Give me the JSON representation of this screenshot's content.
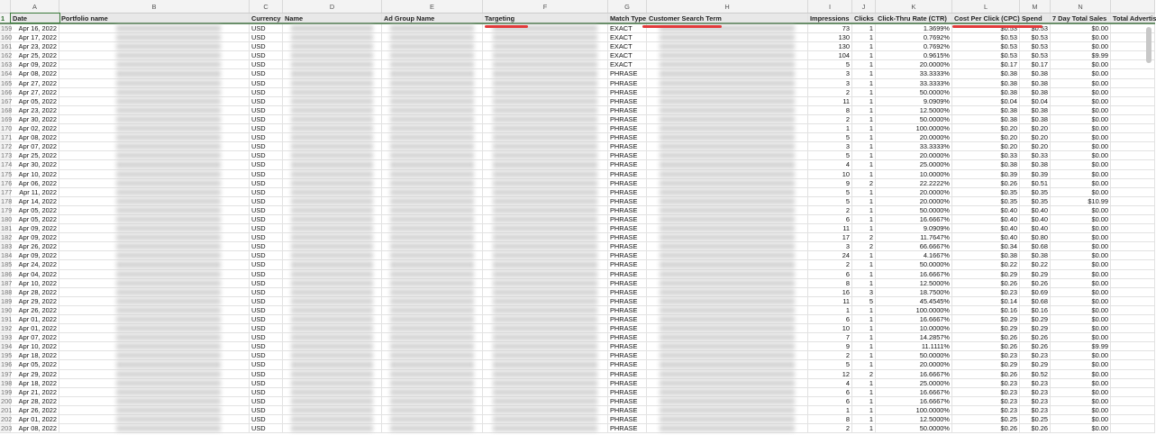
{
  "columns": [
    "A",
    "B",
    "C",
    "D",
    "E",
    "F",
    "G",
    "H",
    "I",
    "J",
    "K",
    "L",
    "M",
    "N",
    ""
  ],
  "headers": [
    "Date",
    "Portfolio name",
    "Currency",
    "Name",
    "Ad Group Name",
    "Targeting",
    "Match Type",
    "Customer Search Term",
    "Impressions",
    "Clicks",
    "Click-Thru Rate (CTR)",
    "Cost Per Click (CPC)",
    "Spend",
    "7 Day Total Sales",
    "Total Advertis"
  ],
  "header_row_number": "1",
  "currency": "USD",
  "rows": [
    [
      "159",
      "Apr 16, 2022",
      "EXACT",
      "73",
      "1",
      "1.3699%",
      "$0.53",
      "$0.53",
      "$0.00"
    ],
    [
      "160",
      "Apr 17, 2022",
      "EXACT",
      "130",
      "1",
      "0.7692%",
      "$0.53",
      "$0.53",
      "$0.00"
    ],
    [
      "161",
      "Apr 23, 2022",
      "EXACT",
      "130",
      "1",
      "0.7692%",
      "$0.53",
      "$0.53",
      "$0.00"
    ],
    [
      "162",
      "Apr 25, 2022",
      "EXACT",
      "104",
      "1",
      "0.9615%",
      "$0.53",
      "$0.53",
      "$9.99"
    ],
    [
      "163",
      "Apr 09, 2022",
      "EXACT",
      "5",
      "1",
      "20.0000%",
      "$0.17",
      "$0.17",
      "$0.00"
    ],
    [
      "164",
      "Apr 08, 2022",
      "PHRASE",
      "3",
      "1",
      "33.3333%",
      "$0.38",
      "$0.38",
      "$0.00"
    ],
    [
      "165",
      "Apr 27, 2022",
      "PHRASE",
      "3",
      "1",
      "33.3333%",
      "$0.38",
      "$0.38",
      "$0.00"
    ],
    [
      "166",
      "Apr 27, 2022",
      "PHRASE",
      "2",
      "1",
      "50.0000%",
      "$0.38",
      "$0.38",
      "$0.00"
    ],
    [
      "167",
      "Apr 05, 2022",
      "PHRASE",
      "11",
      "1",
      "9.0909%",
      "$0.04",
      "$0.04",
      "$0.00"
    ],
    [
      "168",
      "Apr 23, 2022",
      "PHRASE",
      "8",
      "1",
      "12.5000%",
      "$0.38",
      "$0.38",
      "$0.00"
    ],
    [
      "169",
      "Apr 30, 2022",
      "PHRASE",
      "2",
      "1",
      "50.0000%",
      "$0.38",
      "$0.38",
      "$0.00"
    ],
    [
      "170",
      "Apr 02, 2022",
      "PHRASE",
      "1",
      "1",
      "100.0000%",
      "$0.20",
      "$0.20",
      "$0.00"
    ],
    [
      "171",
      "Apr 08, 2022",
      "PHRASE",
      "5",
      "1",
      "20.0000%",
      "$0.20",
      "$0.20",
      "$0.00"
    ],
    [
      "172",
      "Apr 07, 2022",
      "PHRASE",
      "3",
      "1",
      "33.3333%",
      "$0.20",
      "$0.20",
      "$0.00"
    ],
    [
      "173",
      "Apr 25, 2022",
      "PHRASE",
      "5",
      "1",
      "20.0000%",
      "$0.33",
      "$0.33",
      "$0.00"
    ],
    [
      "174",
      "Apr 30, 2022",
      "PHRASE",
      "4",
      "1",
      "25.0000%",
      "$0.38",
      "$0.38",
      "$0.00"
    ],
    [
      "175",
      "Apr 10, 2022",
      "PHRASE",
      "10",
      "1",
      "10.0000%",
      "$0.39",
      "$0.39",
      "$0.00"
    ],
    [
      "176",
      "Apr 06, 2022",
      "PHRASE",
      "9",
      "2",
      "22.2222%",
      "$0.26",
      "$0.51",
      "$0.00"
    ],
    [
      "177",
      "Apr 11, 2022",
      "PHRASE",
      "5",
      "1",
      "20.0000%",
      "$0.35",
      "$0.35",
      "$0.00"
    ],
    [
      "178",
      "Apr 14, 2022",
      "PHRASE",
      "5",
      "1",
      "20.0000%",
      "$0.35",
      "$0.35",
      "$10.99"
    ],
    [
      "179",
      "Apr 05, 2022",
      "PHRASE",
      "2",
      "1",
      "50.0000%",
      "$0.40",
      "$0.40",
      "$0.00"
    ],
    [
      "180",
      "Apr 05, 2022",
      "PHRASE",
      "6",
      "1",
      "16.6667%",
      "$0.40",
      "$0.40",
      "$0.00"
    ],
    [
      "181",
      "Apr 09, 2022",
      "PHRASE",
      "11",
      "1",
      "9.0909%",
      "$0.40",
      "$0.40",
      "$0.00"
    ],
    [
      "182",
      "Apr 09, 2022",
      "PHRASE",
      "17",
      "2",
      "11.7647%",
      "$0.40",
      "$0.80",
      "$0.00"
    ],
    [
      "183",
      "Apr 26, 2022",
      "PHRASE",
      "3",
      "2",
      "66.6667%",
      "$0.34",
      "$0.68",
      "$0.00"
    ],
    [
      "184",
      "Apr 09, 2022",
      "PHRASE",
      "24",
      "1",
      "4.1667%",
      "$0.38",
      "$0.38",
      "$0.00"
    ],
    [
      "185",
      "Apr 24, 2022",
      "PHRASE",
      "2",
      "1",
      "50.0000%",
      "$0.22",
      "$0.22",
      "$0.00"
    ],
    [
      "186",
      "Apr 04, 2022",
      "PHRASE",
      "6",
      "1",
      "16.6667%",
      "$0.29",
      "$0.29",
      "$0.00"
    ],
    [
      "187",
      "Apr 10, 2022",
      "PHRASE",
      "8",
      "1",
      "12.5000%",
      "$0.26",
      "$0.26",
      "$0.00"
    ],
    [
      "188",
      "Apr 28, 2022",
      "PHRASE",
      "16",
      "3",
      "18.7500%",
      "$0.23",
      "$0.69",
      "$0.00"
    ],
    [
      "189",
      "Apr 29, 2022",
      "PHRASE",
      "11",
      "5",
      "45.4545%",
      "$0.14",
      "$0.68",
      "$0.00"
    ],
    [
      "190",
      "Apr 26, 2022",
      "PHRASE",
      "1",
      "1",
      "100.0000%",
      "$0.16",
      "$0.16",
      "$0.00"
    ],
    [
      "191",
      "Apr 01, 2022",
      "PHRASE",
      "6",
      "1",
      "16.6667%",
      "$0.29",
      "$0.29",
      "$0.00"
    ],
    [
      "192",
      "Apr 01, 2022",
      "PHRASE",
      "10",
      "1",
      "10.0000%",
      "$0.29",
      "$0.29",
      "$0.00"
    ],
    [
      "193",
      "Apr 07, 2022",
      "PHRASE",
      "7",
      "1",
      "14.2857%",
      "$0.26",
      "$0.26",
      "$0.00"
    ],
    [
      "194",
      "Apr 10, 2022",
      "PHRASE",
      "9",
      "1",
      "11.1111%",
      "$0.26",
      "$0.26",
      "$9.99"
    ],
    [
      "195",
      "Apr 18, 2022",
      "PHRASE",
      "2",
      "1",
      "50.0000%",
      "$0.23",
      "$0.23",
      "$0.00"
    ],
    [
      "196",
      "Apr 05, 2022",
      "PHRASE",
      "5",
      "1",
      "20.0000%",
      "$0.29",
      "$0.29",
      "$0.00"
    ],
    [
      "197",
      "Apr 29, 2022",
      "PHRASE",
      "12",
      "2",
      "16.6667%",
      "$0.26",
      "$0.52",
      "$0.00"
    ],
    [
      "198",
      "Apr 18, 2022",
      "PHRASE",
      "4",
      "1",
      "25.0000%",
      "$0.23",
      "$0.23",
      "$0.00"
    ],
    [
      "199",
      "Apr 21, 2022",
      "PHRASE",
      "6",
      "1",
      "16.6667%",
      "$0.23",
      "$0.23",
      "$0.00"
    ],
    [
      "200",
      "Apr 28, 2022",
      "PHRASE",
      "6",
      "1",
      "16.6667%",
      "$0.23",
      "$0.23",
      "$0.00"
    ],
    [
      "201",
      "Apr 26, 2022",
      "PHRASE",
      "1",
      "1",
      "100.0000%",
      "$0.23",
      "$0.23",
      "$0.00"
    ],
    [
      "202",
      "Apr 01, 2022",
      "PHRASE",
      "8",
      "1",
      "12.5000%",
      "$0.25",
      "$0.25",
      "$0.00"
    ],
    [
      "203",
      "Apr 08, 2022",
      "PHRASE",
      "2",
      "1",
      "50.0000%",
      "$0.26",
      "$0.26",
      "$0.00"
    ]
  ],
  "colors": {
    "highlight": "#e23a3a",
    "header_border": "#6a8f6a"
  }
}
